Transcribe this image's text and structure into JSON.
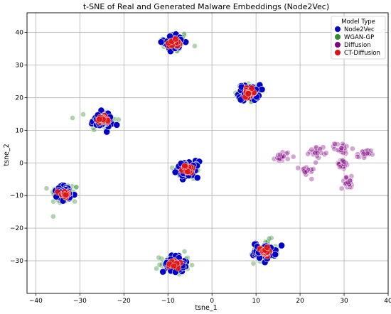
{
  "chart_data": {
    "type": "scatter",
    "title": "t-SNE of Real and Generated Malware Embeddings (Node2Vec)",
    "xlabel": "tsne_1",
    "ylabel": "tsne_2",
    "xlim": [
      -42,
      40
    ],
    "ylim": [
      -40,
      46
    ],
    "xticks": [
      "−40",
      "−30",
      "−20",
      "−10",
      "0",
      "10",
      "20",
      "30",
      "40"
    ],
    "yticks": [
      "−30",
      "−20",
      "−10",
      "0",
      "10",
      "20",
      "30",
      "40"
    ],
    "grid": true,
    "legend": {
      "title": "Model Type",
      "placement": "top-right",
      "entries": [
        "Node2Vec",
        "WGAN-GP",
        "Diffusion",
        "CT-Diffusion"
      ]
    },
    "series": [
      {
        "name": "Node2Vec",
        "color": "#0000cc",
        "clusters": [
          {
            "center": [
              -8.5,
              37
            ],
            "spread": 2.2,
            "count": 45
          },
          {
            "center": [
              8.5,
              21.5
            ],
            "spread": 2.2,
            "count": 45
          },
          {
            "center": [
              -25,
              13
            ],
            "spread": 2.2,
            "count": 45
          },
          {
            "center": [
              -5.5,
              -2
            ],
            "spread": 2.2,
            "count": 45
          },
          {
            "center": [
              -33.5,
              -9.5
            ],
            "spread": 2.3,
            "count": 45
          },
          {
            "center": [
              12,
              -27
            ],
            "spread": 2.3,
            "count": 45
          },
          {
            "center": [
              -8.5,
              -31
            ],
            "spread": 2.3,
            "count": 45
          }
        ]
      },
      {
        "name": "WGAN-GP",
        "color": "#2e8b2e",
        "clusters": [
          {
            "center": [
              -8.5,
              37
            ],
            "spread": 3.0,
            "count": 40
          },
          {
            "center": [
              8.5,
              21.5
            ],
            "spread": 3.0,
            "count": 40
          },
          {
            "center": [
              -25,
              13
            ],
            "spread": 3.0,
            "count": 40
          },
          {
            "center": [
              -5.5,
              -2
            ],
            "spread": 3.0,
            "count": 40
          },
          {
            "center": [
              -33.5,
              -9.5
            ],
            "spread": 3.0,
            "count": 40
          },
          {
            "center": [
              12,
              -27
            ],
            "spread": 3.0,
            "count": 40
          },
          {
            "center": [
              -8.5,
              -31
            ],
            "spread": 3.0,
            "count": 40
          }
        ]
      },
      {
        "name": "Diffusion",
        "color": "#800080",
        "clusters": [
          {
            "center": [
              16,
              2
            ],
            "spread": 1.5,
            "count": 22
          },
          {
            "center": [
              24,
              3.5
            ],
            "spread": 1.6,
            "count": 22
          },
          {
            "center": [
              29.5,
              4.5
            ],
            "spread": 1.5,
            "count": 22
          },
          {
            "center": [
              34.5,
              2.5
            ],
            "spread": 1.4,
            "count": 20
          },
          {
            "center": [
              21.5,
              -2.5
            ],
            "spread": 1.5,
            "count": 20
          },
          {
            "center": [
              29.5,
              -0.5
            ],
            "spread": 1.5,
            "count": 22
          },
          {
            "center": [
              31,
              -6
            ],
            "spread": 1.6,
            "count": 22
          }
        ]
      },
      {
        "name": "CT-Diffusion",
        "color": "#e01010",
        "clusters": [
          {
            "center": [
              -8.5,
              37
            ],
            "spread": 1.1,
            "count": 20
          },
          {
            "center": [
              8.5,
              21.5
            ],
            "spread": 1.1,
            "count": 20
          },
          {
            "center": [
              -25,
              13
            ],
            "spread": 1.1,
            "count": 20
          },
          {
            "center": [
              -5.5,
              -2
            ],
            "spread": 1.1,
            "count": 20
          },
          {
            "center": [
              -33.5,
              -9.5
            ],
            "spread": 1.1,
            "count": 20
          },
          {
            "center": [
              12,
              -27
            ],
            "spread": 1.1,
            "count": 20
          },
          {
            "center": [
              -8.5,
              -31
            ],
            "spread": 1.1,
            "count": 20
          }
        ]
      }
    ]
  }
}
